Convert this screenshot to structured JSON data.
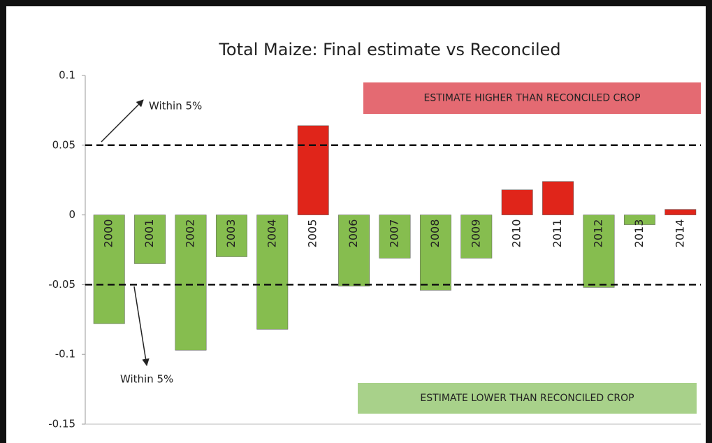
{
  "chart_data": {
    "type": "bar",
    "title": "Total Maize: Final estimate vs Reconciled",
    "categories": [
      "2000",
      "2001",
      "2002",
      "2003",
      "2004",
      "2005",
      "2006",
      "2007",
      "2008",
      "2009",
      "2010",
      "2011",
      "2012",
      "2013",
      "2014"
    ],
    "values": [
      -0.078,
      -0.035,
      -0.097,
      -0.03,
      -0.082,
      0.064,
      -0.051,
      -0.031,
      -0.054,
      -0.031,
      0.018,
      0.024,
      -0.052,
      -0.007,
      0.004
    ],
    "colors": [
      "#86bd4f",
      "#86bd4f",
      "#86bd4f",
      "#86bd4f",
      "#86bd4f",
      "#e0251a",
      "#86bd4f",
      "#86bd4f",
      "#86bd4f",
      "#86bd4f",
      "#e0251a",
      "#e0251a",
      "#86bd4f",
      "#86bd4f",
      "#e0251a"
    ],
    "ylim": [
      -0.15,
      0.1
    ],
    "yticks": [
      -0.15,
      -0.1,
      -0.05,
      0,
      0.05,
      0.1
    ],
    "reference_lines": [
      0.05,
      -0.05
    ],
    "annotations": [
      {
        "text": "ESTIMATE HIGHER THAN RECONCILED CROP",
        "color": "#e46a72"
      },
      {
        "text": "ESTIMATE LOWER THAN RECONCILED CROP",
        "color": "#a8d18a"
      },
      {
        "text": "Within 5%"
      },
      {
        "text": "Within 5%"
      }
    ]
  }
}
